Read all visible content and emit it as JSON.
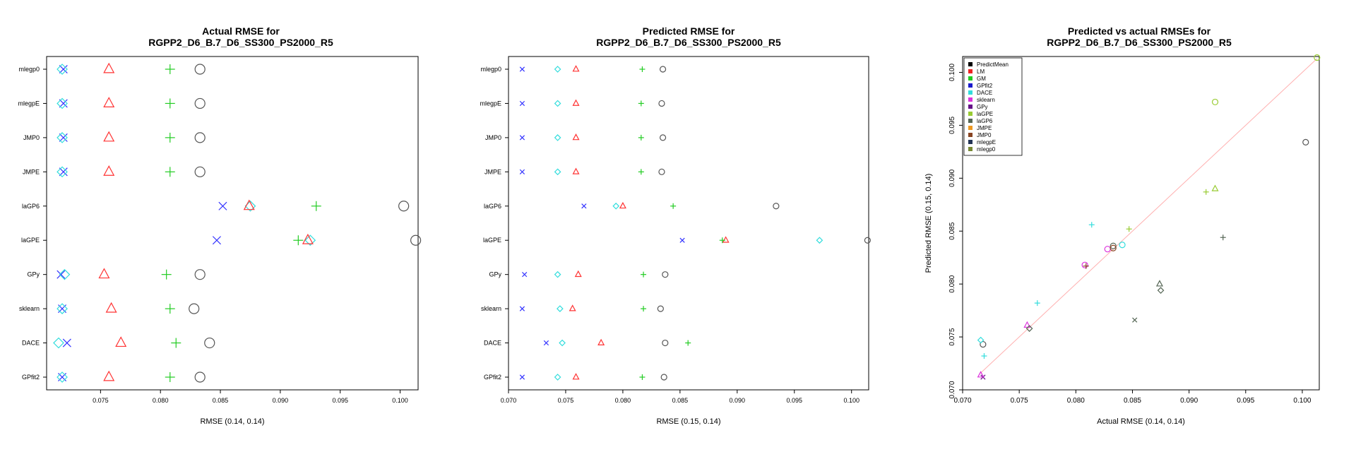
{
  "chart_data": [
    {
      "type": "scatter",
      "title": [
        "Actual RMSE for",
        "RGPP2_D6_B.7_D6_SS300_PS2000_R5"
      ],
      "xlabel": "RMSE (0.14, 0.14)",
      "ylabel": "",
      "xlim": [
        0.0705,
        0.1015
      ],
      "x_ticks": [
        "0.075",
        "0.080",
        "0.085",
        "0.090",
        "0.095",
        "0.100"
      ],
      "categories": [
        "GPfit2",
        "DACE",
        "sklearn",
        "GPy",
        "laGPE",
        "laGP6",
        "JMPE",
        "JMP0",
        "mlegpE",
        "mlegp0"
      ],
      "series": [
        {
          "marker": "x",
          "color": "#3333ff",
          "values": [
            0.0718,
            0.0722,
            0.0718,
            0.0717,
            0.0847,
            0.0852,
            0.0719,
            0.0719,
            0.0719,
            0.0719
          ]
        },
        {
          "marker": "diamond",
          "color": "#33dddd",
          "values": [
            0.0718,
            0.0715,
            0.0718,
            0.072,
            0.0925,
            0.0875,
            0.0718,
            0.0718,
            0.0718,
            0.0718
          ]
        },
        {
          "marker": "triangle",
          "color": "#ff3333",
          "values": [
            0.0757,
            0.0767,
            0.0759,
            0.0753,
            0.0923,
            0.0874,
            0.0757,
            0.0757,
            0.0757,
            0.0757
          ]
        },
        {
          "marker": "plus",
          "color": "#22cc22",
          "values": [
            0.0808,
            0.0813,
            0.0808,
            0.0805,
            0.0915,
            0.093,
            0.0808,
            0.0808,
            0.0808,
            0.0808
          ]
        },
        {
          "marker": "circle",
          "color": "#555555",
          "values": [
            0.0833,
            0.0841,
            0.0828,
            0.0833,
            0.1013,
            0.1003,
            0.0833,
            0.0833,
            0.0833,
            0.0833
          ]
        }
      ]
    },
    {
      "type": "scatter",
      "title": [
        "Predicted RMSE for",
        "RGPP2_D6_B.7_D6_SS300_PS2000_R5"
      ],
      "xlabel": "RMSE (0.15, 0.14)",
      "ylabel": "",
      "xlim": [
        0.07,
        0.1015
      ],
      "x_ticks": [
        "0.070",
        "0.075",
        "0.080",
        "0.085",
        "0.090",
        "0.095",
        "0.100"
      ],
      "categories": [
        "GPfit2",
        "DACE",
        "sklearn",
        "GPy",
        "laGPE",
        "laGP6",
        "JMPE",
        "JMP0",
        "mlegpE",
        "mlegp0"
      ],
      "series": [
        {
          "marker": "x",
          "color": "#3333ff",
          "values": [
            0.0712,
            0.0733,
            0.0712,
            0.0714,
            0.0852,
            0.0766,
            0.0712,
            0.0712,
            0.0712,
            0.0712
          ]
        },
        {
          "marker": "diamond",
          "color": "#33dddd",
          "values": [
            0.0743,
            0.0747,
            0.0745,
            0.0743,
            0.0972,
            0.0794,
            0.0743,
            0.0743,
            0.0743,
            0.0743
          ]
        },
        {
          "marker": "triangle",
          "color": "#ff3333",
          "values": [
            0.0759,
            0.0781,
            0.0756,
            0.0761,
            0.089,
            0.08,
            0.0759,
            0.0759,
            0.0759,
            0.0759
          ]
        },
        {
          "marker": "plus",
          "color": "#22cc22",
          "values": [
            0.0817,
            0.0857,
            0.0818,
            0.0818,
            0.0887,
            0.0844,
            0.0816,
            0.0816,
            0.0816,
            0.0817
          ]
        },
        {
          "marker": "circle",
          "color": "#555555",
          "values": [
            0.0836,
            0.0837,
            0.0833,
            0.0837,
            0.1014,
            0.0934,
            0.0834,
            0.0835,
            0.0834,
            0.0835
          ]
        }
      ]
    },
    {
      "type": "scatter",
      "title": [
        "Predicted vs actual RMSEs for",
        "RGPP2_D6_B.7_D6_SS300_PS2000_R5"
      ],
      "xlabel": "Actual RMSE (0.14, 0.14)",
      "ylabel": "Predicted RMSE (0.15, 0.14)",
      "xlim": [
        0.07,
        0.1015
      ],
      "ylim": [
        0.07,
        0.1015
      ],
      "x_ticks": [
        "0.070",
        "0.075",
        "0.080",
        "0.085",
        "0.090",
        "0.095",
        "0.100"
      ],
      "y_ticks": [
        "0.070",
        "0.075",
        "0.080",
        "0.085",
        "0.090",
        "0.095",
        "0.100"
      ],
      "identity_line": true,
      "legend": {
        "position": "top-left",
        "items": [
          {
            "label": "PredictMean",
            "color": "#000000"
          },
          {
            "label": "LM",
            "color": "#ee2222"
          },
          {
            "label": "GM",
            "color": "#22cc22"
          },
          {
            "label": "GPfit2",
            "color": "#1a1acc"
          },
          {
            "label": "DACE",
            "color": "#33dddd"
          },
          {
            "label": "sklearn",
            "color": "#dd33dd"
          },
          {
            "label": "GPy",
            "color": "#661188"
          },
          {
            "label": "laGPE",
            "color": "#99cc33"
          },
          {
            "label": "laGP6",
            "color": "#556655"
          },
          {
            "label": "JMPE",
            "color": "#ee9922"
          },
          {
            "label": "JMP0",
            "color": "#884422"
          },
          {
            "label": "mlegpE",
            "color": "#223355"
          },
          {
            "label": "mlegp0",
            "color": "#778833"
          }
        ]
      },
      "points": [
        {
          "x": 0.0718,
          "y": 0.0743,
          "marker": "circle",
          "color": "#555555"
        },
        {
          "x": 0.0716,
          "y": 0.0747,
          "marker": "diamond",
          "color": "#33dddd"
        },
        {
          "x": 0.0719,
          "y": 0.0732,
          "marker": "plus",
          "color": "#33dddd"
        },
        {
          "x": 0.0718,
          "y": 0.0712,
          "marker": "x",
          "color": "#661188"
        },
        {
          "x": 0.0716,
          "y": 0.0714,
          "marker": "triangle",
          "color": "#dd33dd"
        },
        {
          "x": 0.0757,
          "y": 0.0761,
          "marker": "triangle",
          "color": "#dd33dd"
        },
        {
          "x": 0.0759,
          "y": 0.0758,
          "marker": "diamond",
          "color": "#556655"
        },
        {
          "x": 0.0766,
          "y": 0.0782,
          "marker": "plus",
          "color": "#33dddd"
        },
        {
          "x": 0.0808,
          "y": 0.0818,
          "marker": "circle",
          "color": "#dd33dd"
        },
        {
          "x": 0.0809,
          "y": 0.0817,
          "marker": "plus",
          "color": "#884422"
        },
        {
          "x": 0.0814,
          "y": 0.0856,
          "marker": "plus",
          "color": "#33dddd"
        },
        {
          "x": 0.0828,
          "y": 0.0833,
          "marker": "circle",
          "color": "#dd33dd"
        },
        {
          "x": 0.0833,
          "y": 0.0836,
          "marker": "circle",
          "color": "#556655"
        },
        {
          "x": 0.0833,
          "y": 0.0834,
          "marker": "circle",
          "color": "#884422"
        },
        {
          "x": 0.0841,
          "y": 0.0837,
          "marker": "circle",
          "color": "#33dddd"
        },
        {
          "x": 0.0847,
          "y": 0.0852,
          "marker": "plus",
          "color": "#99cc33"
        },
        {
          "x": 0.0852,
          "y": 0.0766,
          "marker": "x",
          "color": "#556655"
        },
        {
          "x": 0.0874,
          "y": 0.08,
          "marker": "triangle",
          "color": "#556655"
        },
        {
          "x": 0.0875,
          "y": 0.0794,
          "marker": "diamond",
          "color": "#556655"
        },
        {
          "x": 0.0915,
          "y": 0.0887,
          "marker": "plus",
          "color": "#99cc33"
        },
        {
          "x": 0.0923,
          "y": 0.089,
          "marker": "triangle",
          "color": "#99cc33"
        },
        {
          "x": 0.0923,
          "y": 0.0972,
          "marker": "circle",
          "color": "#99cc33"
        },
        {
          "x": 0.093,
          "y": 0.0844,
          "marker": "plus",
          "color": "#556655"
        },
        {
          "x": 0.1003,
          "y": 0.0934,
          "marker": "circle",
          "color": "#555555"
        },
        {
          "x": 0.1013,
          "y": 0.1014,
          "marker": "circle",
          "color": "#99cc33"
        }
      ]
    }
  ]
}
